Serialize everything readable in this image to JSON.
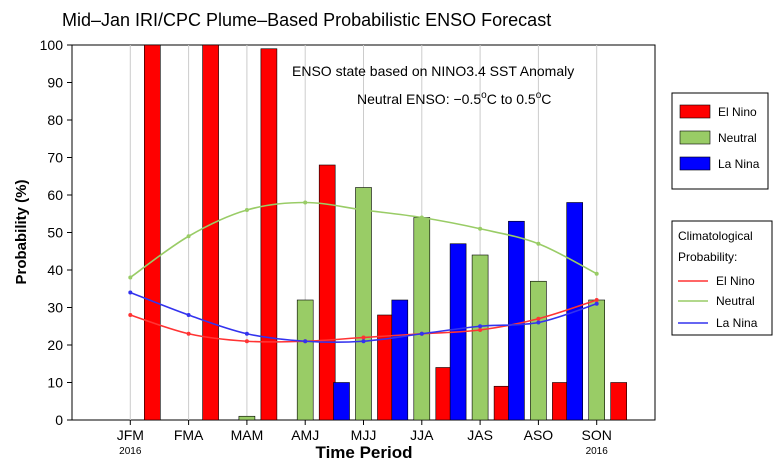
{
  "chart_data": {
    "type": "bar",
    "title": "Mid–Jan IRI/CPC Plume–Based Probabilistic ENSO Forecast",
    "xlabel": "Time Period",
    "ylabel": "Probability (%)",
    "ylim": [
      0,
      100
    ],
    "yticks": [
      0,
      10,
      20,
      30,
      40,
      50,
      60,
      70,
      80,
      90,
      100
    ],
    "grid": "vertical",
    "categories": [
      "JFM",
      "FMA",
      "MAM",
      "AMJ",
      "MJJ",
      "JJA",
      "JAS",
      "ASO",
      "SON"
    ],
    "year_labels": {
      "first": "2016",
      "last": "2016"
    },
    "annotation": {
      "line1": "ENSO state based on NINO3.4 SST Anomaly",
      "line2_prefix": "Neutral ENSO: −0.5",
      "line2_deg": "o",
      "line2_mid": "C to 0.5",
      "line2_suffix": "C"
    },
    "series": [
      {
        "name": "El Nino",
        "color": "#ff0000",
        "values": [
          100,
          100,
          99,
          68,
          28,
          14,
          9,
          10,
          10
        ]
      },
      {
        "name": "Neutral",
        "color": "#99cc66",
        "values": [
          0,
          0,
          1,
          32,
          62,
          54,
          44,
          37,
          32
        ]
      },
      {
        "name": "La Nina",
        "color": "#0000ff",
        "values": [
          0,
          0,
          0,
          0,
          10,
          32,
          47,
          53,
          58
        ]
      }
    ],
    "climatology": {
      "title_line1": "Climatological",
      "title_line2": "Probability:",
      "lines": [
        {
          "name": "El Nino",
          "color": "#ff3333",
          "values": [
            28,
            23,
            21,
            21,
            22,
            23,
            24,
            27,
            32
          ]
        },
        {
          "name": "Neutral",
          "color": "#99cc66",
          "values": [
            38,
            49,
            56,
            58,
            56,
            54,
            51,
            47,
            39
          ]
        },
        {
          "name": "La Nina",
          "color": "#3333ee",
          "values": [
            34,
            28,
            23,
            21,
            21,
            23,
            25,
            26,
            31
          ]
        }
      ]
    },
    "legend_position": "right"
  }
}
